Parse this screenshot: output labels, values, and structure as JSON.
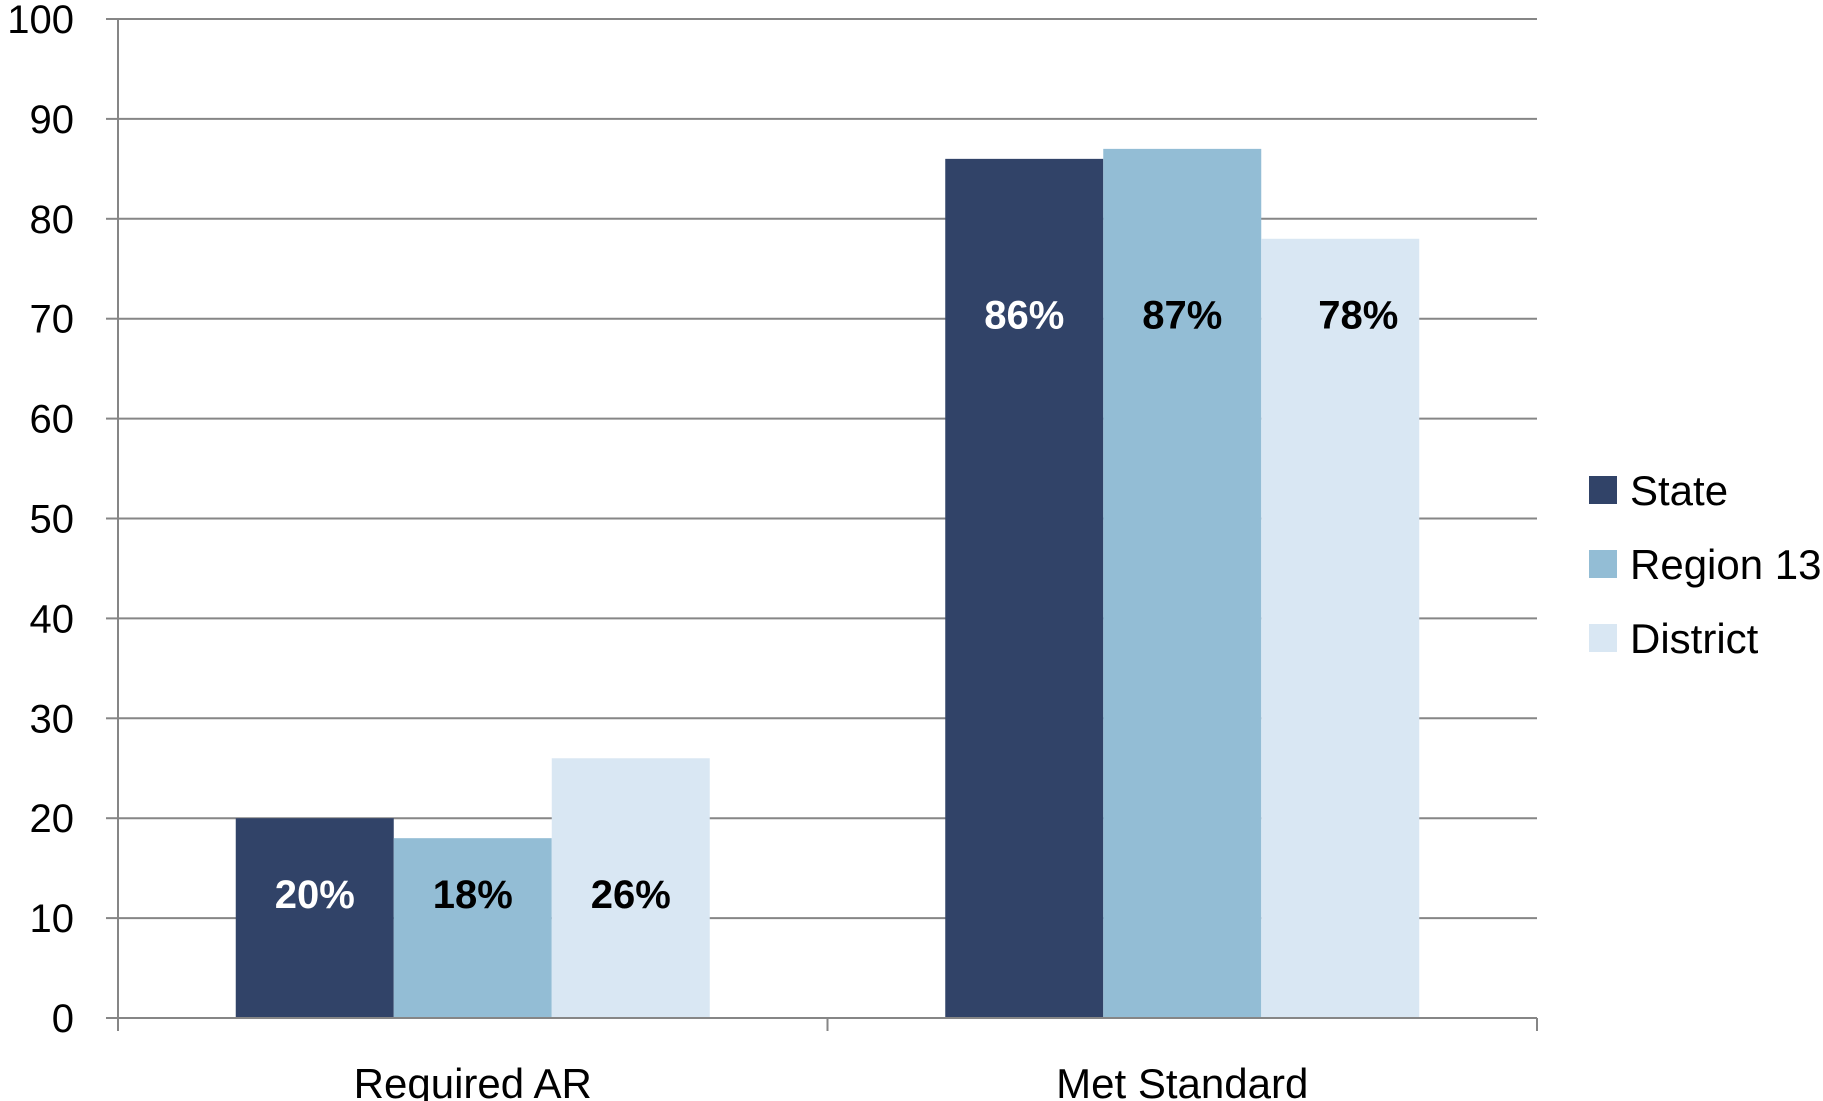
{
  "chart_data": {
    "type": "bar",
    "categories": [
      "Required AR",
      "Met Standard"
    ],
    "series": [
      {
        "name": "State",
        "values": [
          20,
          86
        ],
        "labels": [
          "20%",
          "86%"
        ],
        "color": "#314368",
        "label_color": "#ffffff"
      },
      {
        "name": "Region 13",
        "values": [
          18,
          87
        ],
        "labels": [
          "18%",
          "87%"
        ],
        "color": "#93bdd5",
        "label_color": "#000000"
      },
      {
        "name": "District",
        "values": [
          26,
          78
        ],
        "labels": [
          "26%",
          "78%"
        ],
        "color": "#d9e7f3",
        "label_color": "#000000"
      }
    ],
    "ylim": [
      0,
      100
    ],
    "yticks": [
      0,
      10,
      20,
      30,
      40,
      50,
      60,
      70,
      80,
      90,
      100
    ],
    "ytick_labels": [
      "0",
      "10",
      "20",
      "30",
      "40",
      "50",
      "60",
      "70",
      "80",
      "90",
      "100"
    ],
    "title": "",
    "xlabel": "",
    "ylabel": "",
    "grid": true,
    "legend_position": "right"
  }
}
